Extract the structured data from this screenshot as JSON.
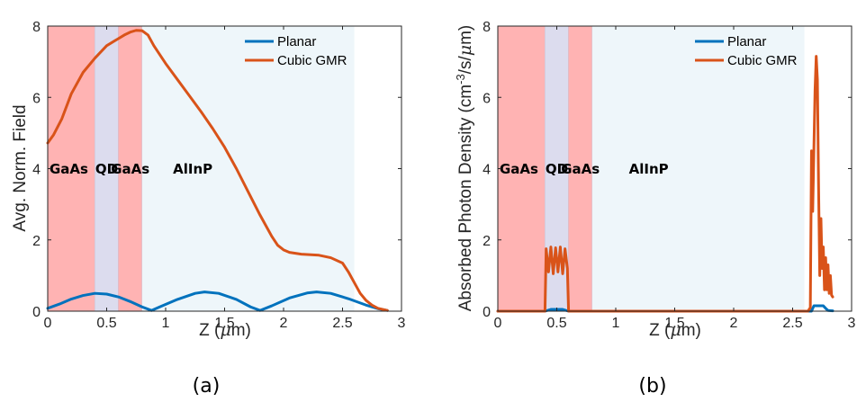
{
  "chart_data": [
    {
      "type": "line",
      "caption": "(a)",
      "xlabel_main": "Z (",
      "xlabel_symbol": "μ",
      "xlabel_unit": "m)",
      "ylabel": "Avg. Norm. Field",
      "xlim": [
        0,
        3
      ],
      "ylim": [
        0,
        8
      ],
      "xticks": [
        0,
        0.5,
        1,
        1.5,
        2,
        2.5,
        3
      ],
      "xtick_labels": [
        "0",
        "0.5",
        "1",
        "1.5",
        "2",
        "2.5",
        "3"
      ],
      "yticks": [
        0,
        2,
        4,
        6,
        8
      ],
      "ytick_labels": [
        "0",
        "2",
        "4",
        "6",
        "8"
      ],
      "legend_position": "top-right",
      "regions": [
        {
          "label": "GaAs",
          "x0": 0,
          "x1": 0.4,
          "color": "#ffb3b3"
        },
        {
          "label": "QD",
          "x0": 0.4,
          "x1": 0.6,
          "color": "#dcdcee"
        },
        {
          "label": "GaAs",
          "x0": 0.6,
          "x1": 0.8,
          "color": "#ffb3b3"
        },
        {
          "label": "AlInP",
          "x0": 0.8,
          "x1": 2.6,
          "color": "#eef6fa"
        }
      ],
      "series": [
        {
          "name": "Planar",
          "color": "#0072bd",
          "points": [
            [
              0,
              0.08
            ],
            [
              0.1,
              0.2
            ],
            [
              0.2,
              0.34
            ],
            [
              0.3,
              0.44
            ],
            [
              0.4,
              0.5
            ],
            [
              0.5,
              0.48
            ],
            [
              0.6,
              0.4
            ],
            [
              0.7,
              0.27
            ],
            [
              0.8,
              0.12
            ],
            [
              0.88,
              0.02
            ],
            [
              0.95,
              0.12
            ],
            [
              1.1,
              0.33
            ],
            [
              1.25,
              0.5
            ],
            [
              1.33,
              0.54
            ],
            [
              1.45,
              0.5
            ],
            [
              1.6,
              0.33
            ],
            [
              1.72,
              0.12
            ],
            [
              1.8,
              0.02
            ],
            [
              1.9,
              0.15
            ],
            [
              2.05,
              0.37
            ],
            [
              2.2,
              0.51
            ],
            [
              2.28,
              0.54
            ],
            [
              2.4,
              0.5
            ],
            [
              2.55,
              0.35
            ],
            [
              2.7,
              0.17
            ],
            [
              2.8,
              0.07
            ],
            [
              2.88,
              0.02
            ]
          ]
        },
        {
          "name": "Cubic GMR",
          "color": "#d95319",
          "points": [
            [
              0,
              4.72
            ],
            [
              0.05,
              4.95
            ],
            [
              0.12,
              5.4
            ],
            [
              0.2,
              6.1
            ],
            [
              0.3,
              6.7
            ],
            [
              0.4,
              7.1
            ],
            [
              0.5,
              7.45
            ],
            [
              0.6,
              7.65
            ],
            [
              0.65,
              7.75
            ],
            [
              0.7,
              7.83
            ],
            [
              0.75,
              7.88
            ],
            [
              0.8,
              7.87
            ],
            [
              0.85,
              7.75
            ],
            [
              0.9,
              7.45
            ],
            [
              1.0,
              6.95
            ],
            [
              1.1,
              6.5
            ],
            [
              1.2,
              6.05
            ],
            [
              1.3,
              5.6
            ],
            [
              1.4,
              5.12
            ],
            [
              1.5,
              4.6
            ],
            [
              1.6,
              4.0
            ],
            [
              1.7,
              3.35
            ],
            [
              1.8,
              2.7
            ],
            [
              1.9,
              2.1
            ],
            [
              1.95,
              1.85
            ],
            [
              2.0,
              1.72
            ],
            [
              2.05,
              1.65
            ],
            [
              2.15,
              1.6
            ],
            [
              2.3,
              1.57
            ],
            [
              2.4,
              1.5
            ],
            [
              2.5,
              1.35
            ],
            [
              2.55,
              1.1
            ],
            [
              2.6,
              0.8
            ],
            [
              2.65,
              0.5
            ],
            [
              2.7,
              0.3
            ],
            [
              2.75,
              0.17
            ],
            [
              2.8,
              0.08
            ],
            [
              2.88,
              0.02
            ]
          ]
        }
      ]
    },
    {
      "type": "line",
      "caption": "(b)",
      "xlabel_main": "Z (",
      "xlabel_symbol": "μ",
      "xlabel_unit": "m)",
      "ylabel_main": "Absorbed Photon Density (cm",
      "ylabel_sup": "-3",
      "ylabel_mid": "/s/",
      "ylabel_symbol": "μ",
      "ylabel_end": "m)",
      "xlim": [
        0,
        3
      ],
      "ylim": [
        0,
        8
      ],
      "xticks": [
        0,
        0.5,
        1,
        1.5,
        2,
        2.5,
        3
      ],
      "xtick_labels": [
        "0",
        "0.5",
        "1",
        "1.5",
        "2",
        "2.5",
        "3"
      ],
      "yticks": [
        0,
        2,
        4,
        6,
        8
      ],
      "ytick_labels": [
        "0",
        "2",
        "4",
        "6",
        "8"
      ],
      "legend_position": "top-right",
      "regions": [
        {
          "label": "GaAs",
          "x0": 0,
          "x1": 0.4,
          "color": "#ffb3b3"
        },
        {
          "label": "QD",
          "x0": 0.4,
          "x1": 0.6,
          "color": "#dcdcee"
        },
        {
          "label": "GaAs",
          "x0": 0.6,
          "x1": 0.8,
          "color": "#ffb3b3"
        },
        {
          "label": "AlInP",
          "x0": 0.8,
          "x1": 2.6,
          "color": "#eef6fa"
        }
      ],
      "series": [
        {
          "name": "Planar",
          "color": "#0072bd",
          "points": [
            [
              0,
              0
            ],
            [
              0.4,
              0
            ],
            [
              0.45,
              0.05
            ],
            [
              0.55,
              0.05
            ],
            [
              0.6,
              0
            ],
            [
              2.66,
              0
            ],
            [
              2.68,
              0.15
            ],
            [
              2.76,
              0.15
            ],
            [
              2.78,
              0.08
            ],
            [
              2.8,
              0.02
            ],
            [
              2.84,
              0.01
            ]
          ]
        },
        {
          "name": "Cubic GMR",
          "color": "#d95319",
          "points": [
            [
              0,
              0
            ],
            [
              0.39,
              0
            ],
            [
              0.4,
              0
            ],
            [
              0.41,
              1.75
            ],
            [
              0.43,
              1.1
            ],
            [
              0.45,
              1.8
            ],
            [
              0.47,
              1.05
            ],
            [
              0.49,
              1.78
            ],
            [
              0.51,
              1.1
            ],
            [
              0.53,
              1.8
            ],
            [
              0.55,
              1.05
            ],
            [
              0.57,
              1.75
            ],
            [
              0.59,
              1.2
            ],
            [
              0.6,
              0
            ],
            [
              2.63,
              0
            ],
            [
              2.65,
              0.1
            ],
            [
              2.66,
              4.5
            ],
            [
              2.67,
              2.8
            ],
            [
              2.69,
              6.2
            ],
            [
              2.7,
              7.15
            ],
            [
              2.71,
              6.5
            ],
            [
              2.72,
              3.5
            ],
            [
              2.73,
              1.0
            ],
            [
              2.74,
              2.6
            ],
            [
              2.75,
              1.2
            ],
            [
              2.76,
              1.8
            ],
            [
              2.77,
              0.6
            ],
            [
              2.78,
              1.5
            ],
            [
              2.79,
              0.6
            ],
            [
              2.8,
              1.3
            ],
            [
              2.81,
              0.5
            ],
            [
              2.82,
              1.0
            ],
            [
              2.83,
              0.45
            ],
            [
              2.84,
              0.4
            ]
          ]
        }
      ]
    }
  ]
}
